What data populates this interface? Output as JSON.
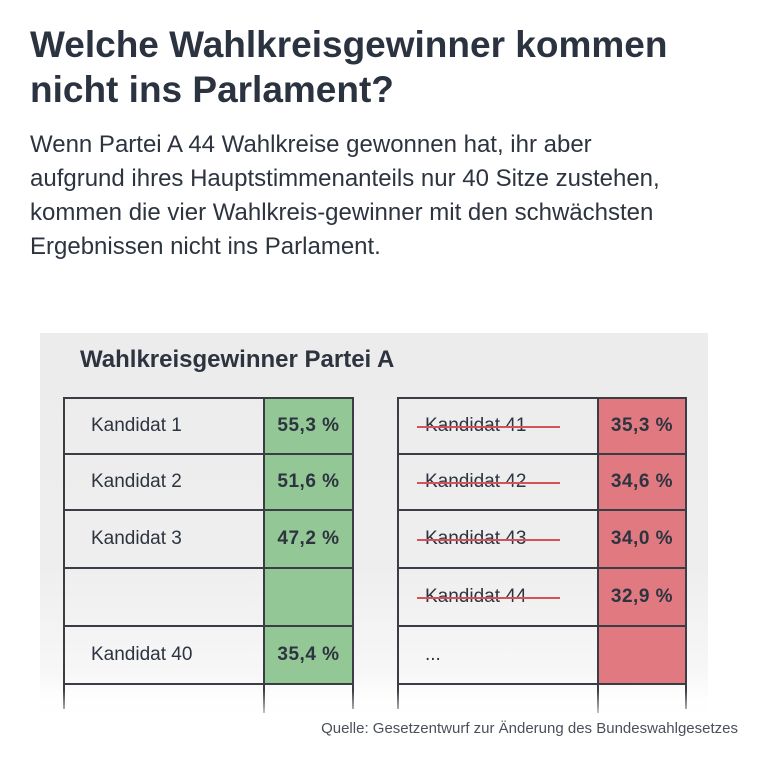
{
  "headline": "Welche Wahlkreisgewinner kommen nicht ins Parlament?",
  "intro": "Wenn Partei A 44 Wahlkreise gewonnen hat, ihr aber aufgrund ihres Hauptstimmenanteils nur 40 Sitze zustehen, kommen die vier Wahlkreis-gewinner mit den schwächsten Ergebnissen nicht ins Parlament.",
  "table_title": "Wahlkreisgewinner Partei A",
  "left_rows": [
    {
      "name": "Kandidat 1",
      "value": "55,3 %"
    },
    {
      "name": "Kandidat 2",
      "value": "51,6 %"
    },
    {
      "name": "Kandidat 3",
      "value": "47,2 %"
    },
    {
      "name": "",
      "value": ""
    },
    {
      "name": "Kandidat 40",
      "value": "35,4 %"
    }
  ],
  "right_rows": [
    {
      "name": "Kandidat 41",
      "value": "35,3 %"
    },
    {
      "name": "Kandidat 42",
      "value": "34,6 %"
    },
    {
      "name": "Kandidat 43",
      "value": "34,0 %"
    },
    {
      "name": "Kandidat 44",
      "value": "32,9 %"
    },
    {
      "name": "...",
      "value": ""
    }
  ],
  "source": "Quelle: Gesetzentwurf zur Änderung des Bundeswahlgesetzes",
  "colors": {
    "green": "#93c795",
    "red": "#e17980",
    "strike": "#d4525a"
  }
}
